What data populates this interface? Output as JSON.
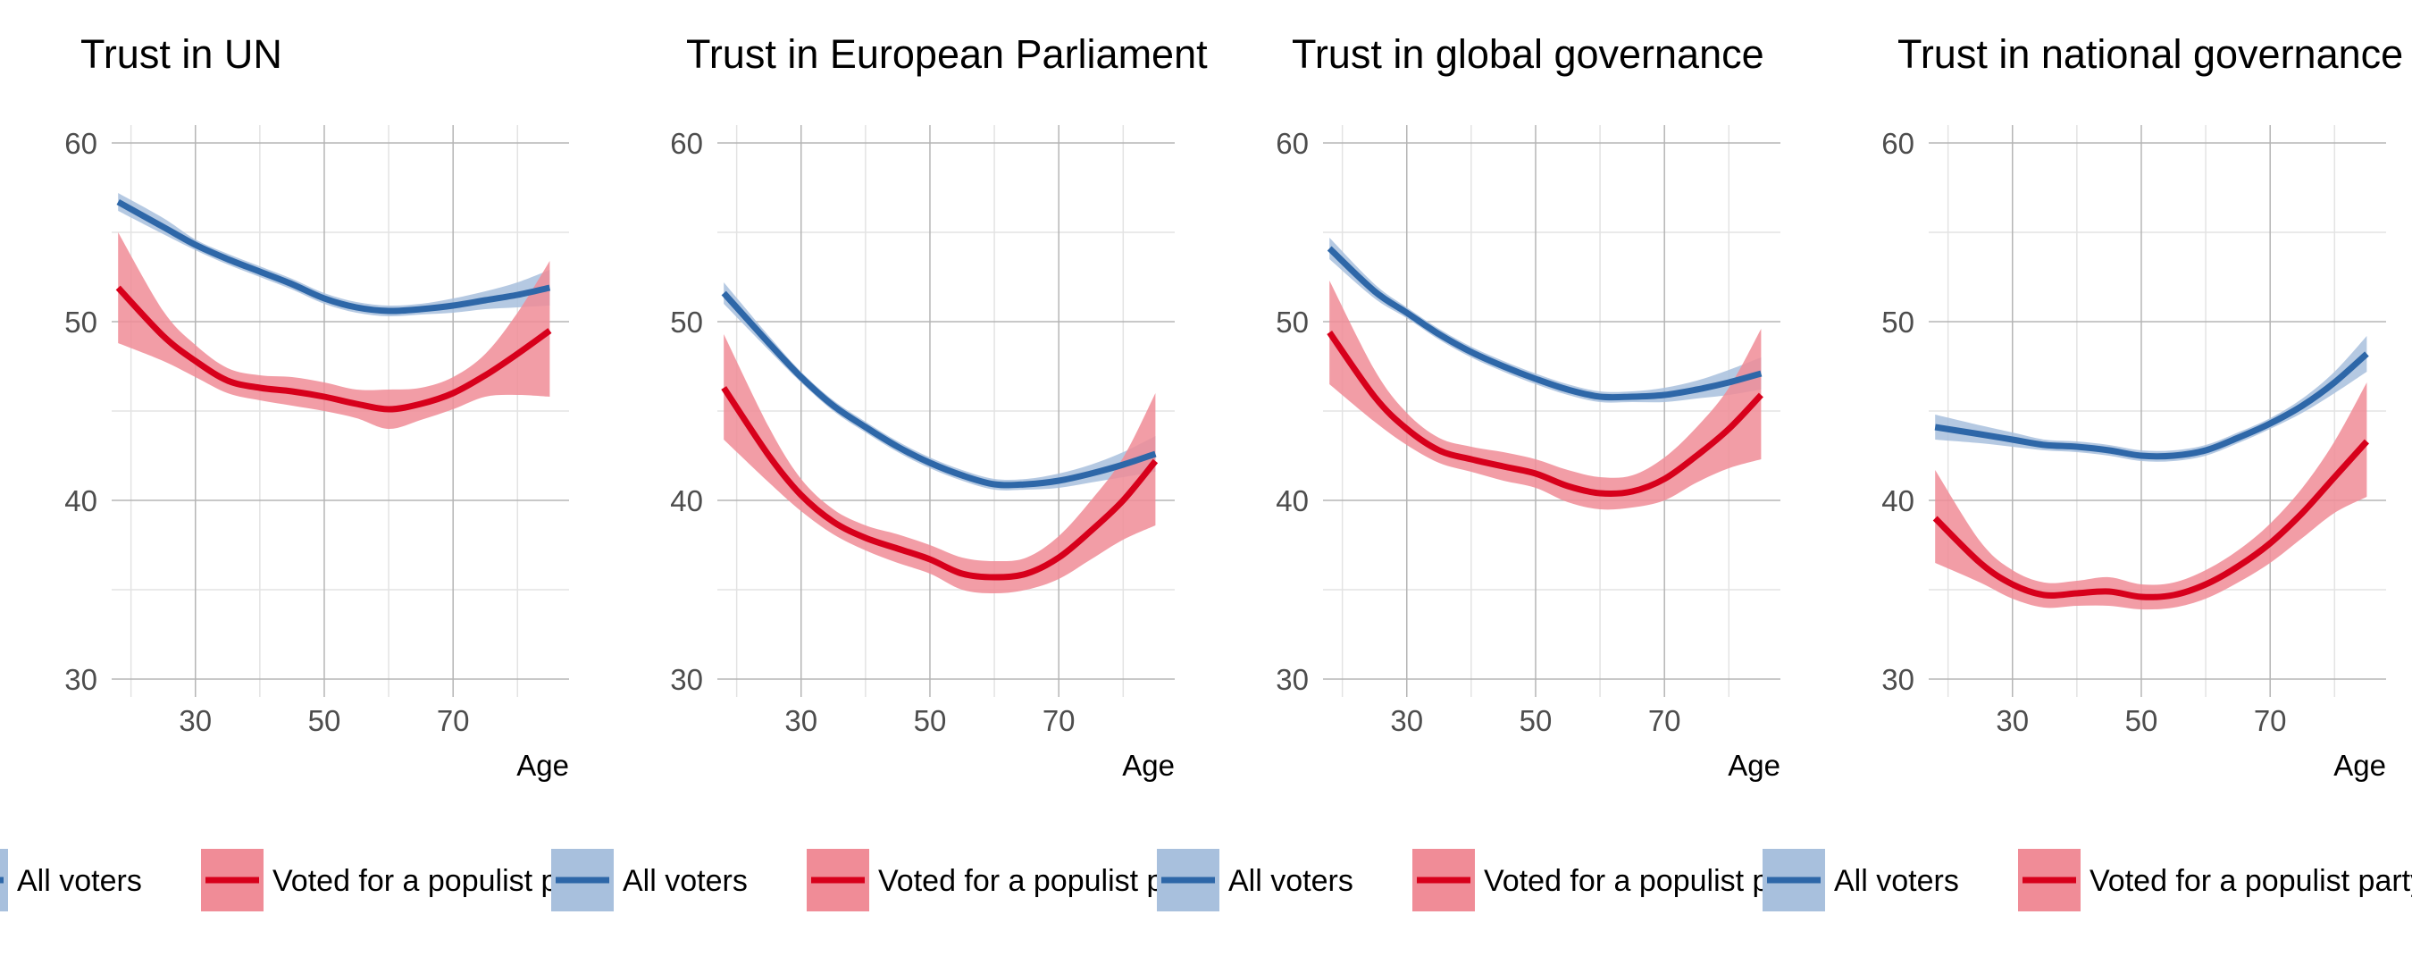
{
  "colors": {
    "all_voters_line": "#2e67a8",
    "all_voters_band": "#a8c0dd",
    "populist_line": "#d7001b",
    "populist_band": "#f08c97",
    "grid_major": "#b5b5b5",
    "grid_minor": "#e3e3e3"
  },
  "legend": {
    "all_voters": "All voters",
    "populist": "Voted for a populist party"
  },
  "chart_data": [
    {
      "type": "line",
      "title": "Trust in UN",
      "xlabel": "Age",
      "ylabel": "",
      "xlim": [
        17,
        88
      ],
      "ylim": [
        29,
        61
      ],
      "xticks": [
        30,
        50,
        70
      ],
      "yticks": [
        30,
        40,
        50,
        60
      ],
      "x": [
        18,
        25,
        30,
        35,
        40,
        45,
        50,
        55,
        60,
        65,
        70,
        75,
        80,
        85
      ],
      "series": [
        {
          "name": "All voters",
          "values": [
            56.7,
            55.3,
            54.3,
            53.5,
            52.8,
            52.1,
            51.3,
            50.8,
            50.6,
            50.7,
            50.9,
            51.2,
            51.5,
            51.9
          ],
          "lower": [
            56.2,
            54.9,
            54.0,
            53.2,
            52.5,
            51.8,
            51.0,
            50.5,
            50.3,
            50.4,
            50.5,
            50.7,
            50.8,
            50.9
          ],
          "upper": [
            57.2,
            55.8,
            54.6,
            53.8,
            53.1,
            52.4,
            51.6,
            51.1,
            50.9,
            51.0,
            51.3,
            51.7,
            52.2,
            52.9
          ]
        },
        {
          "name": "Voted for a populist party",
          "values": [
            51.9,
            49.2,
            47.8,
            46.7,
            46.3,
            46.1,
            45.8,
            45.4,
            45.1,
            45.4,
            46.0,
            47.0,
            48.2,
            49.5
          ],
          "lower": [
            48.8,
            47.8,
            46.9,
            46.0,
            45.6,
            45.3,
            45.0,
            44.6,
            44.0,
            44.5,
            45.1,
            45.8,
            45.9,
            45.8
          ],
          "upper": [
            55.0,
            50.6,
            48.7,
            47.4,
            47.0,
            46.9,
            46.6,
            46.2,
            46.2,
            46.3,
            46.9,
            48.2,
            50.5,
            53.4
          ]
        }
      ]
    },
    {
      "type": "line",
      "title": "Trust in European Parliament",
      "xlabel": "Age",
      "ylabel": "",
      "xlim": [
        17,
        88
      ],
      "ylim": [
        29,
        61
      ],
      "xticks": [
        30,
        50,
        70
      ],
      "yticks": [
        30,
        40,
        50,
        60
      ],
      "x": [
        18,
        25,
        30,
        35,
        40,
        45,
        50,
        55,
        60,
        65,
        70,
        75,
        80,
        85
      ],
      "series": [
        {
          "name": "All voters",
          "values": [
            51.6,
            48.8,
            46.9,
            45.3,
            44.1,
            43.0,
            42.1,
            41.4,
            40.9,
            40.9,
            41.1,
            41.5,
            42.0,
            42.6
          ],
          "lower": [
            51.0,
            48.4,
            46.6,
            45.0,
            43.8,
            42.7,
            41.8,
            41.1,
            40.6,
            40.6,
            40.7,
            41.0,
            41.3,
            41.6
          ],
          "upper": [
            52.2,
            49.2,
            47.2,
            45.6,
            44.4,
            43.3,
            42.4,
            41.7,
            41.2,
            41.2,
            41.5,
            42.0,
            42.7,
            43.6
          ]
        },
        {
          "name": "Voted for a populist party",
          "values": [
            46.3,
            42.5,
            40.3,
            38.8,
            37.9,
            37.3,
            36.7,
            35.9,
            35.7,
            35.9,
            36.8,
            38.3,
            40.0,
            42.2
          ],
          "lower": [
            43.4,
            41.0,
            39.4,
            38.1,
            37.2,
            36.5,
            35.9,
            35.0,
            34.8,
            35.0,
            35.6,
            36.7,
            37.8,
            38.6
          ],
          "upper": [
            49.3,
            44.1,
            41.2,
            39.5,
            38.6,
            38.1,
            37.5,
            36.8,
            36.6,
            36.8,
            38.0,
            40.0,
            42.4,
            46.0
          ]
        }
      ]
    },
    {
      "type": "line",
      "title": "Trust in global governance",
      "xlabel": "Age",
      "ylabel": "",
      "xlim": [
        17,
        88
      ],
      "ylim": [
        29,
        61
      ],
      "xticks": [
        30,
        50,
        70
      ],
      "yticks": [
        30,
        40,
        50,
        60
      ],
      "x": [
        18,
        25,
        30,
        35,
        40,
        45,
        50,
        55,
        60,
        65,
        70,
        75,
        80,
        85
      ],
      "series": [
        {
          "name": "All voters",
          "values": [
            54.1,
            51.7,
            50.5,
            49.3,
            48.3,
            47.5,
            46.8,
            46.2,
            45.8,
            45.8,
            45.9,
            46.2,
            46.6,
            47.1
          ],
          "lower": [
            53.5,
            51.3,
            50.2,
            49.0,
            48.0,
            47.2,
            46.5,
            45.9,
            45.5,
            45.5,
            45.5,
            45.7,
            45.9,
            46.2
          ],
          "upper": [
            54.7,
            52.1,
            50.8,
            49.6,
            48.6,
            47.8,
            47.1,
            46.5,
            46.1,
            46.1,
            46.3,
            46.7,
            47.3,
            48.0
          ]
        },
        {
          "name": "Voted for a populist party",
          "values": [
            49.4,
            45.8,
            44.0,
            42.8,
            42.3,
            41.9,
            41.5,
            40.8,
            40.4,
            40.5,
            41.2,
            42.5,
            44.0,
            45.9
          ],
          "lower": [
            46.5,
            44.4,
            43.1,
            42.1,
            41.6,
            41.1,
            40.7,
            39.9,
            39.5,
            39.6,
            40.0,
            41.0,
            41.8,
            42.3
          ],
          "upper": [
            52.3,
            47.3,
            44.9,
            43.5,
            43.0,
            42.7,
            42.3,
            41.7,
            41.3,
            41.4,
            42.4,
            44.1,
            46.3,
            49.6
          ]
        }
      ]
    },
    {
      "type": "line",
      "title": "Trust in national governance",
      "xlabel": "Age",
      "ylabel": "",
      "xlim": [
        17,
        88
      ],
      "ylim": [
        29,
        61
      ],
      "xticks": [
        30,
        50,
        70
      ],
      "yticks": [
        30,
        40,
        50,
        60
      ],
      "x": [
        18,
        25,
        30,
        35,
        40,
        45,
        50,
        55,
        60,
        65,
        70,
        75,
        80,
        85
      ],
      "series": [
        {
          "name": "All voters",
          "values": [
            44.1,
            43.7,
            43.4,
            43.1,
            43.0,
            42.8,
            42.5,
            42.5,
            42.8,
            43.5,
            44.3,
            45.3,
            46.6,
            48.2
          ],
          "lower": [
            43.4,
            43.2,
            43.0,
            42.8,
            42.7,
            42.5,
            42.2,
            42.2,
            42.5,
            43.2,
            44.0,
            44.9,
            46.0,
            47.2
          ],
          "upper": [
            44.8,
            44.2,
            43.8,
            43.4,
            43.3,
            43.1,
            42.8,
            42.8,
            43.1,
            43.8,
            44.6,
            45.7,
            47.2,
            49.2
          ]
        },
        {
          "name": "Voted for a populist party",
          "values": [
            39.0,
            36.5,
            35.3,
            34.7,
            34.8,
            34.9,
            34.6,
            34.7,
            35.3,
            36.3,
            37.6,
            39.3,
            41.3,
            43.3
          ],
          "lower": [
            36.5,
            35.4,
            34.5,
            34.0,
            34.1,
            34.1,
            33.9,
            34.0,
            34.5,
            35.4,
            36.5,
            37.9,
            39.3,
            40.2
          ],
          "upper": [
            41.7,
            37.7,
            36.1,
            35.4,
            35.5,
            35.7,
            35.3,
            35.4,
            36.1,
            37.2,
            38.7,
            40.7,
            43.3,
            46.6
          ]
        }
      ]
    }
  ]
}
